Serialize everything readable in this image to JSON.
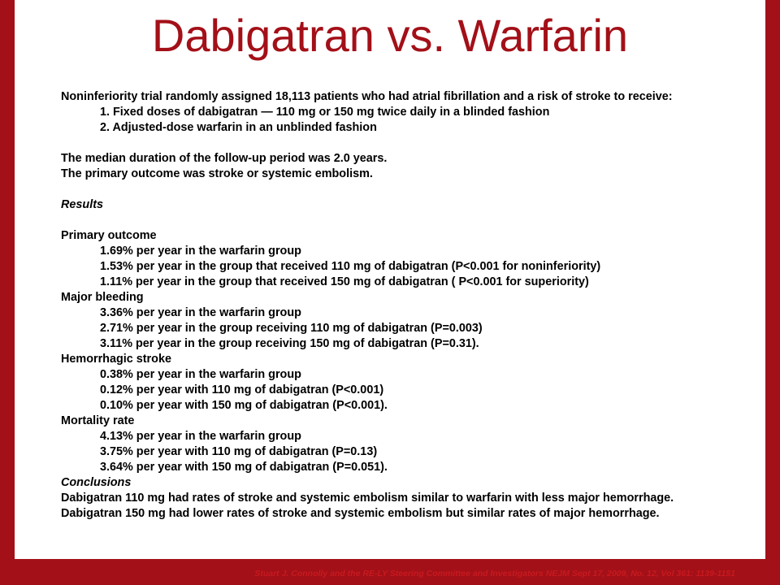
{
  "colors": {
    "accent": "#a31018",
    "background": "#ffffff",
    "text": "#000000"
  },
  "title": "Dabigatran vs. Warfarin",
  "intro": "Noninferiority trial randomly assigned 18,113 patients who had atrial fibrillation  and a risk of stroke to receive:",
  "arms": [
    "1.  Fixed doses of dabigatran — 110 mg or 150 mg twice daily in a blinded fashion",
    "2.  Adjusted-dose warfarin in an unblinded fashion"
  ],
  "followup": "The median duration of the follow-up period was 2.0 years.",
  "primary_def": "The primary outcome was stroke or systemic embolism.",
  "results_heading": "Results",
  "outcomes": [
    {
      "heading": "Primary outcome",
      "items": [
        "1.69% per year in the warfarin group",
        "1.53% per year in the group that received 110 mg of dabigatran (P<0.001 for noninferiority)",
        "1.11% per year in the group that received 150 mg of dabigatran ( P<0.001 for superiority)"
      ]
    },
    {
      "heading": "Major bleeding",
      "items": [
        "3.36% per year in the warfarin group",
        "2.71% per year in the group receiving 110 mg of dabigatran (P=0.003)",
        "3.11% per year in the group receiving 150 mg of dabigatran (P=0.31)."
      ]
    },
    {
      "heading": "Hemorrhagic stroke",
      "items": [
        "0.38% per year in the warfarin group",
        "0.12% per year with 110 mg of dabigatran (P<0.001)",
        "0.10% per year with 150 mg of dabigatran (P<0.001)."
      ]
    },
    {
      "heading": "Mortality rate",
      "items": [
        "4.13% per year in the warfarin group",
        "3.75% per year with 110 mg of dabigatran (P=0.13)",
        "3.64% per year with 150 mg of dabigatran (P=0.051)."
      ]
    }
  ],
  "conclusions_heading": "Conclusions",
  "conclusions": [
    "Dabigatran 110 mg had rates of stroke and systemic embolism similar to warfarin with less major hemorrhage.",
    "Dabigatran 150 mg had lower rates of stroke and systemic embolism but similar rates of major hemorrhage."
  ],
  "citation": "Stuart J. Connolly and the RE-LY Steering Committee and Investigators  NEJM  Sept 17, 2009, No. 12, Vol 361: 1139-1151"
}
